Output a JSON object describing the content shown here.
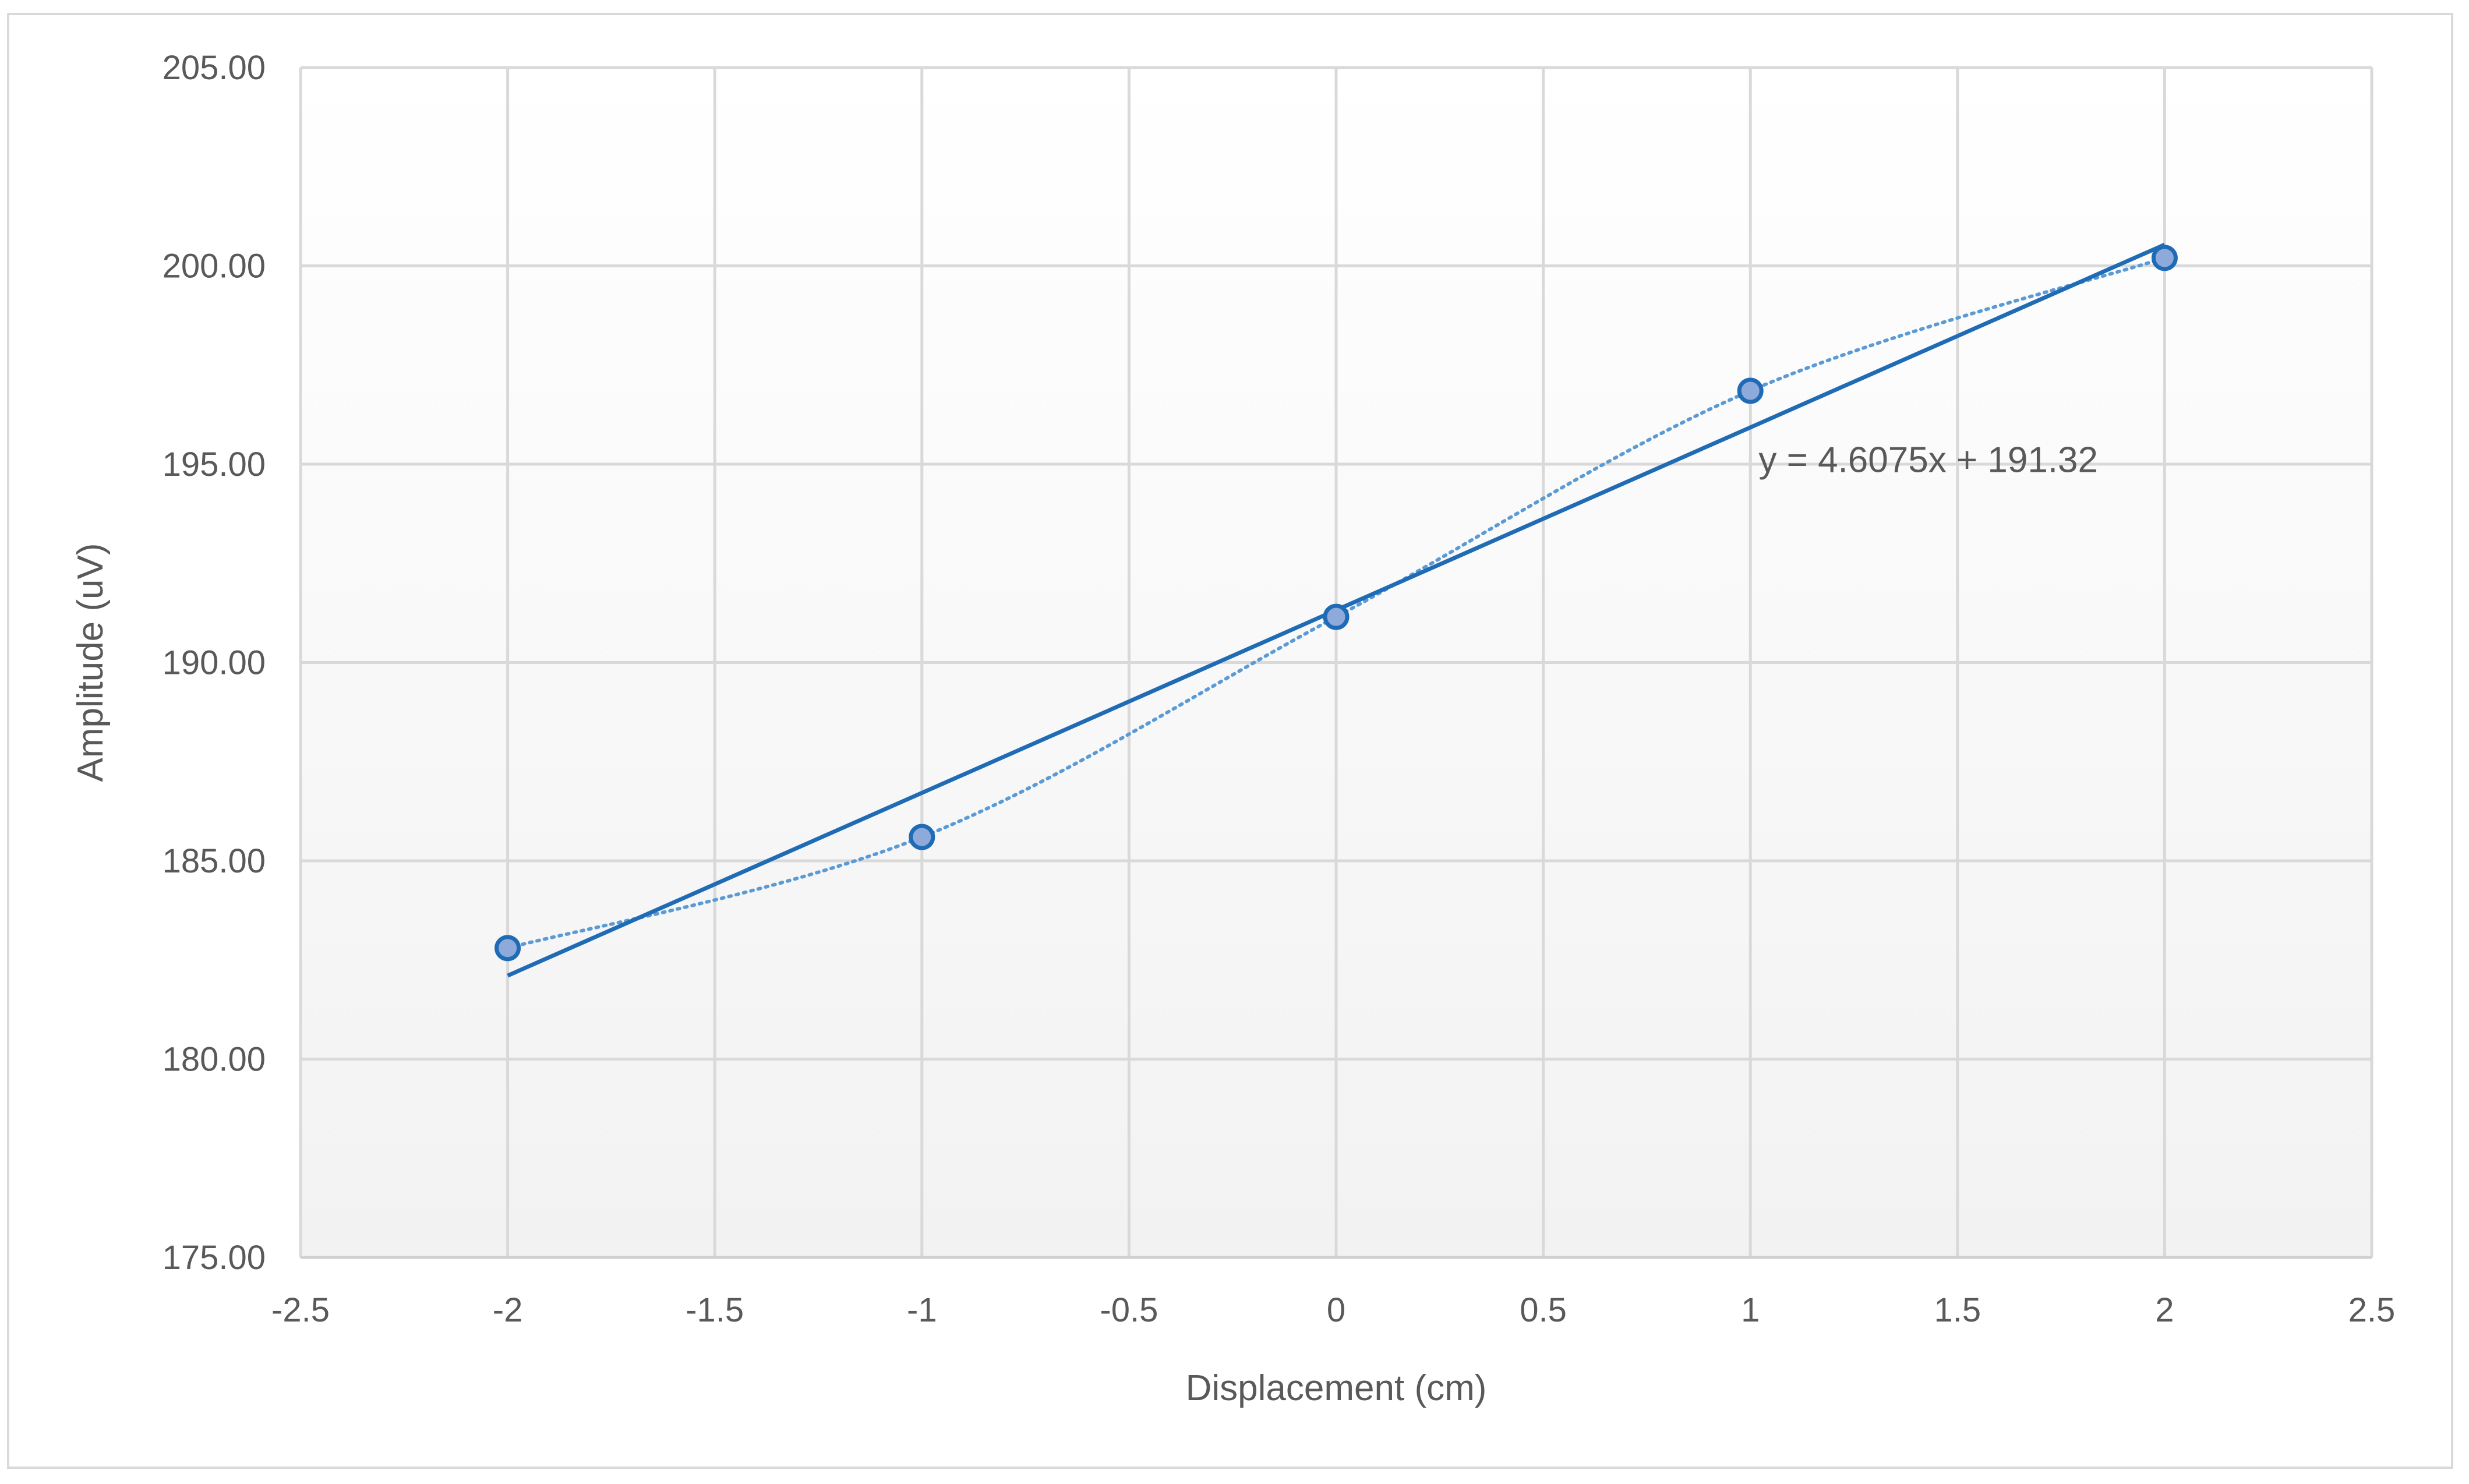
{
  "chart_data": {
    "type": "scatter",
    "title": "",
    "xlabel": "Displacement (cm)",
    "ylabel": "Amplitude (uV)",
    "xlim": [
      -2.5,
      2.5
    ],
    "ylim": [
      175,
      205
    ],
    "x_ticks": [
      -2.5,
      -2,
      -1.5,
      -1,
      -0.5,
      0,
      0.5,
      1,
      1.5,
      2,
      2.5
    ],
    "x_tick_labels": [
      "-2.5",
      "-2",
      "-1.5",
      "-1",
      "-0.5",
      "0",
      "0.5",
      "1",
      "1.5",
      "2",
      "2.5"
    ],
    "y_ticks": [
      175,
      180,
      185,
      190,
      195,
      200,
      205
    ],
    "y_tick_labels": [
      "175.00",
      "180.00",
      "185.00",
      "190.00",
      "195.00",
      "200.00",
      "205.00"
    ],
    "grid": true,
    "series": [
      {
        "x": [
          -2,
          -1,
          0,
          1,
          2
        ],
        "y": [
          182.8,
          185.6,
          191.15,
          196.85,
          200.2
        ],
        "marker": "circle",
        "line": "smooth-dotted",
        "color": "#5b9bd5",
        "edge_color": "#1f6bb5"
      }
    ],
    "trendline": {
      "type": "linear",
      "slope": 4.6075,
      "intercept": 191.32,
      "x_range": [
        -2,
        2
      ],
      "color": "#1f6bb5",
      "equation_label": "y = 4.6075x + 191.32"
    }
  }
}
